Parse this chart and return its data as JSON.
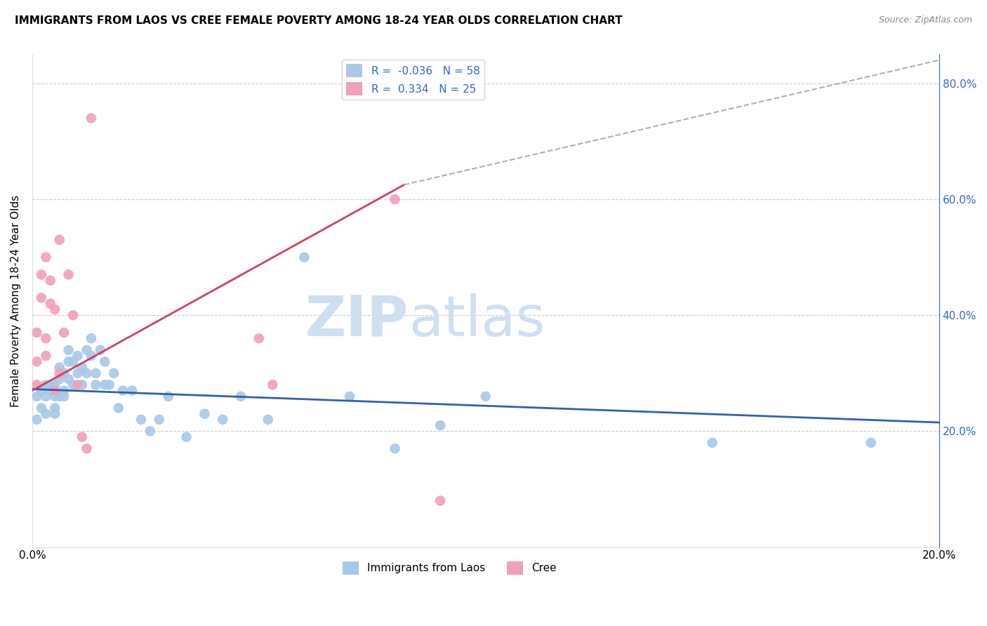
{
  "title": "IMMIGRANTS FROM LAOS VS CREE FEMALE POVERTY AMONG 18-24 YEAR OLDS CORRELATION CHART",
  "source": "Source: ZipAtlas.com",
  "ylabel": "Female Poverty Among 18-24 Year Olds",
  "xlim": [
    0.0,
    0.2
  ],
  "ylim": [
    0.0,
    0.85
  ],
  "blue_color": "#a8c8e8",
  "pink_color": "#f0a0b8",
  "blue_line_color": "#3060b0",
  "pink_line_color": "#d04060",
  "dashed_line_color": "#b0b0b0",
  "R_blue": -0.036,
  "N_blue": 58,
  "R_pink": 0.334,
  "N_pink": 25,
  "legend_label_blue": "Immigrants from Laos",
  "legend_label_pink": "Cree",
  "blue_line": [
    0.0,
    0.2725,
    0.2,
    0.215
  ],
  "pink_line_solid": [
    0.0,
    0.27,
    0.082,
    0.625
  ],
  "pink_line_dashed": [
    0.082,
    0.625,
    0.2,
    0.84
  ],
  "blue_scatter_x": [
    0.001,
    0.001,
    0.002,
    0.002,
    0.003,
    0.003,
    0.003,
    0.004,
    0.004,
    0.005,
    0.005,
    0.005,
    0.005,
    0.006,
    0.006,
    0.006,
    0.007,
    0.007,
    0.007,
    0.008,
    0.008,
    0.008,
    0.009,
    0.009,
    0.01,
    0.01,
    0.011,
    0.011,
    0.012,
    0.012,
    0.013,
    0.013,
    0.014,
    0.014,
    0.015,
    0.016,
    0.016,
    0.017,
    0.018,
    0.019,
    0.02,
    0.022,
    0.024,
    0.026,
    0.028,
    0.03,
    0.034,
    0.038,
    0.042,
    0.046,
    0.052,
    0.06,
    0.07,
    0.08,
    0.09,
    0.1,
    0.15,
    0.185
  ],
  "blue_scatter_y": [
    0.22,
    0.26,
    0.24,
    0.27,
    0.23,
    0.26,
    0.28,
    0.27,
    0.28,
    0.24,
    0.26,
    0.28,
    0.23,
    0.26,
    0.29,
    0.31,
    0.27,
    0.3,
    0.26,
    0.29,
    0.32,
    0.34,
    0.28,
    0.32,
    0.3,
    0.33,
    0.28,
    0.31,
    0.3,
    0.34,
    0.33,
    0.36,
    0.3,
    0.28,
    0.34,
    0.28,
    0.32,
    0.28,
    0.3,
    0.24,
    0.27,
    0.27,
    0.22,
    0.2,
    0.22,
    0.26,
    0.19,
    0.23,
    0.22,
    0.26,
    0.22,
    0.5,
    0.26,
    0.17,
    0.21,
    0.26,
    0.18,
    0.18
  ],
  "pink_scatter_x": [
    0.001,
    0.001,
    0.001,
    0.002,
    0.002,
    0.003,
    0.003,
    0.003,
    0.004,
    0.004,
    0.005,
    0.005,
    0.006,
    0.006,
    0.007,
    0.008,
    0.009,
    0.01,
    0.011,
    0.012,
    0.013,
    0.05,
    0.053,
    0.08,
    0.09
  ],
  "pink_scatter_y": [
    0.28,
    0.32,
    0.37,
    0.43,
    0.47,
    0.33,
    0.36,
    0.5,
    0.42,
    0.46,
    0.27,
    0.41,
    0.3,
    0.53,
    0.37,
    0.47,
    0.4,
    0.28,
    0.19,
    0.17,
    0.74,
    0.36,
    0.28,
    0.6,
    0.08
  ],
  "watermark_zip": "ZIP",
  "watermark_atlas": "atlas",
  "watermark_color": "#d0dff0",
  "watermark_fontsize": 58
}
